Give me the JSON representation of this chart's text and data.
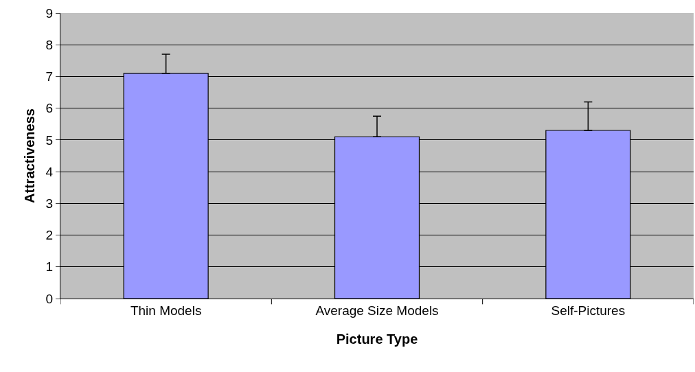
{
  "chart_data": {
    "type": "bar",
    "xlabel": "Picture Type",
    "ylabel": "Attractiveness",
    "categories": [
      "Thin Models",
      "Average Size Models",
      "Self-Pictures"
    ],
    "values": [
      7.1,
      5.1,
      5.3
    ],
    "errors": [
      [
        7.1,
        7.7
      ],
      [
        5.1,
        5.75
      ],
      [
        5.3,
        6.2
      ]
    ],
    "color": "#9999ff",
    "ylim": [
      0,
      9
    ],
    "yticks": [
      0,
      1,
      2,
      3,
      4,
      5,
      6,
      7,
      8,
      9
    ],
    "grid": "y"
  }
}
